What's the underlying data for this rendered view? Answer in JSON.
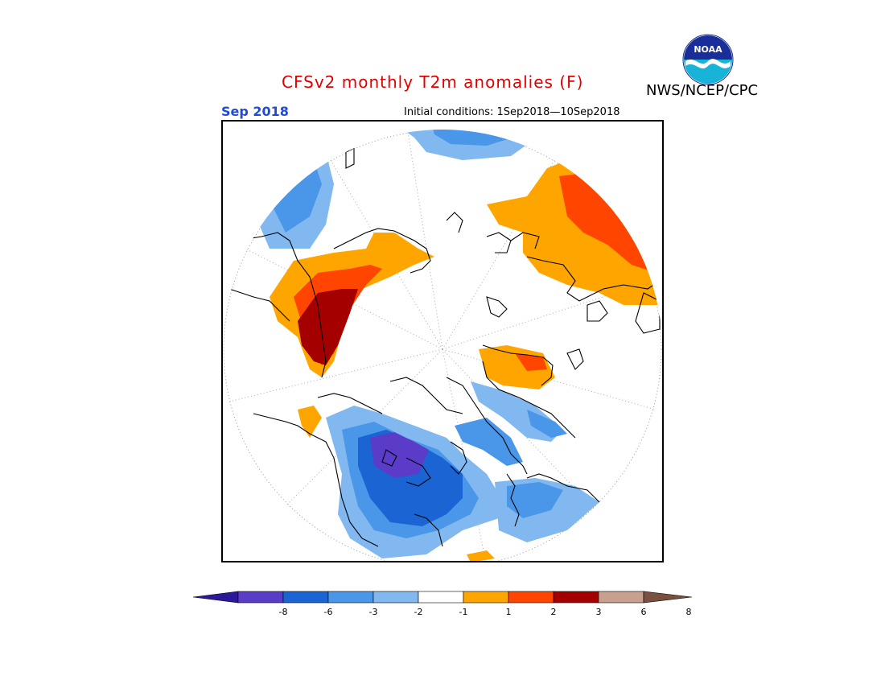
{
  "header": {
    "title": "CFSv2 monthly T2m anomalies (F)",
    "agency": "NWS/NCEP/CPC",
    "period": "Sep 2018",
    "initial_conditions": "Initial conditions: 1Sep2018—10Sep2018",
    "logo_text": "NOAA"
  },
  "colors": {
    "title": "#e00000",
    "period": "#1f4bd8",
    "pos_1_2": "#ffa500",
    "pos_2_3": "#ff4500",
    "pos_3_6": "#a50000",
    "pos_6_8": "#c8a090",
    "neg_1_2": "#80b8ef",
    "neg_2_3": "#4a96e8",
    "neg_3_6": "#1a64d4",
    "neg_6_8": "#5a3cc8"
  },
  "colorbar": {
    "segments": [
      "#2a1a9a",
      "#5a3cc8",
      "#1a64d4",
      "#4a96e8",
      "#80b8ef",
      "#ffffff",
      "#ffa500",
      "#ff4500",
      "#a50000",
      "#c8a090",
      "#7a5040"
    ],
    "ticks": [
      "-8",
      "-6",
      "-3",
      "-2",
      "-1",
      "1",
      "2",
      "3",
      "6",
      "8"
    ]
  }
}
